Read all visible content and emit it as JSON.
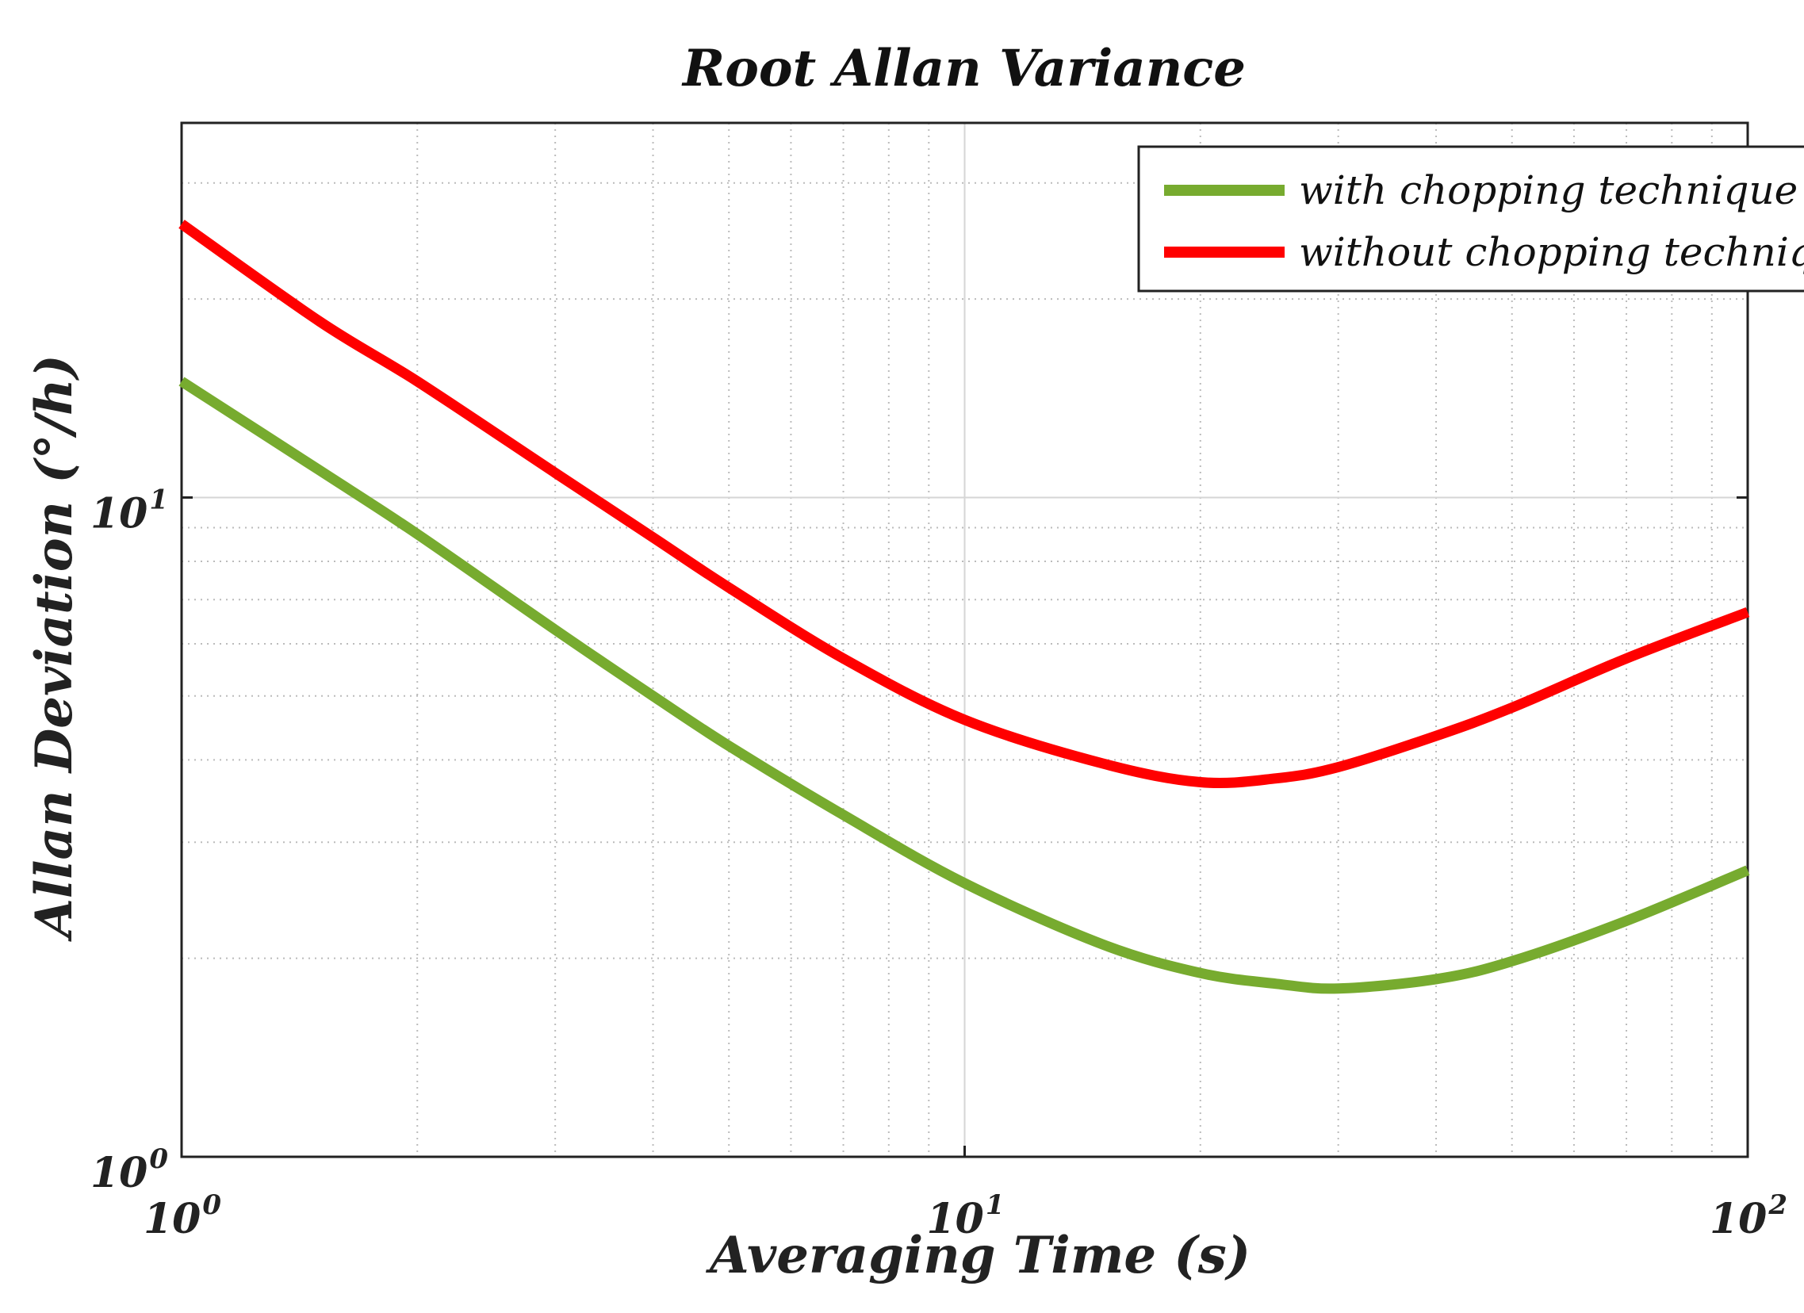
{
  "chart_data": {
    "type": "line",
    "title": "Root Allan Variance",
    "xlabel": "Averaging Time (s)",
    "ylabel": "Allan Deviation (°/h)",
    "xscale": "log",
    "yscale": "log",
    "xlim": [
      1,
      100
    ],
    "ylim": [
      1,
      37
    ],
    "grid": true,
    "legend_position": "top-right",
    "x_ticks": [
      {
        "base": "10",
        "exp": "0"
      },
      {
        "base": "10",
        "exp": "1"
      },
      {
        "base": "10",
        "exp": "2"
      }
    ],
    "y_ticks": [
      {
        "base": "10",
        "exp": "0"
      },
      {
        "base": "10",
        "exp": "1"
      }
    ],
    "series": [
      {
        "name": "with chopping technique",
        "color": "#77ab2f",
        "x": [
          1,
          1.5,
          2,
          3,
          4,
          5,
          7,
          10,
          15,
          20,
          25,
          30,
          40,
          50,
          70,
          100
        ],
        "y": [
          15.0,
          11.0,
          8.8,
          6.3,
          5.0,
          4.2,
          3.3,
          2.6,
          2.1,
          1.9,
          1.83,
          1.8,
          1.86,
          1.98,
          2.28,
          2.72
        ]
      },
      {
        "name": "without chopping technique",
        "color": "#ff0000",
        "x": [
          1,
          1.5,
          2,
          3,
          4,
          5,
          7,
          10,
          15,
          20,
          25,
          30,
          40,
          50,
          70,
          100
        ],
        "y": [
          26.0,
          18.5,
          15.0,
          10.9,
          8.7,
          7.3,
          5.7,
          4.6,
          3.95,
          3.7,
          3.75,
          3.9,
          4.35,
          4.8,
          5.7,
          6.7
        ]
      }
    ]
  }
}
